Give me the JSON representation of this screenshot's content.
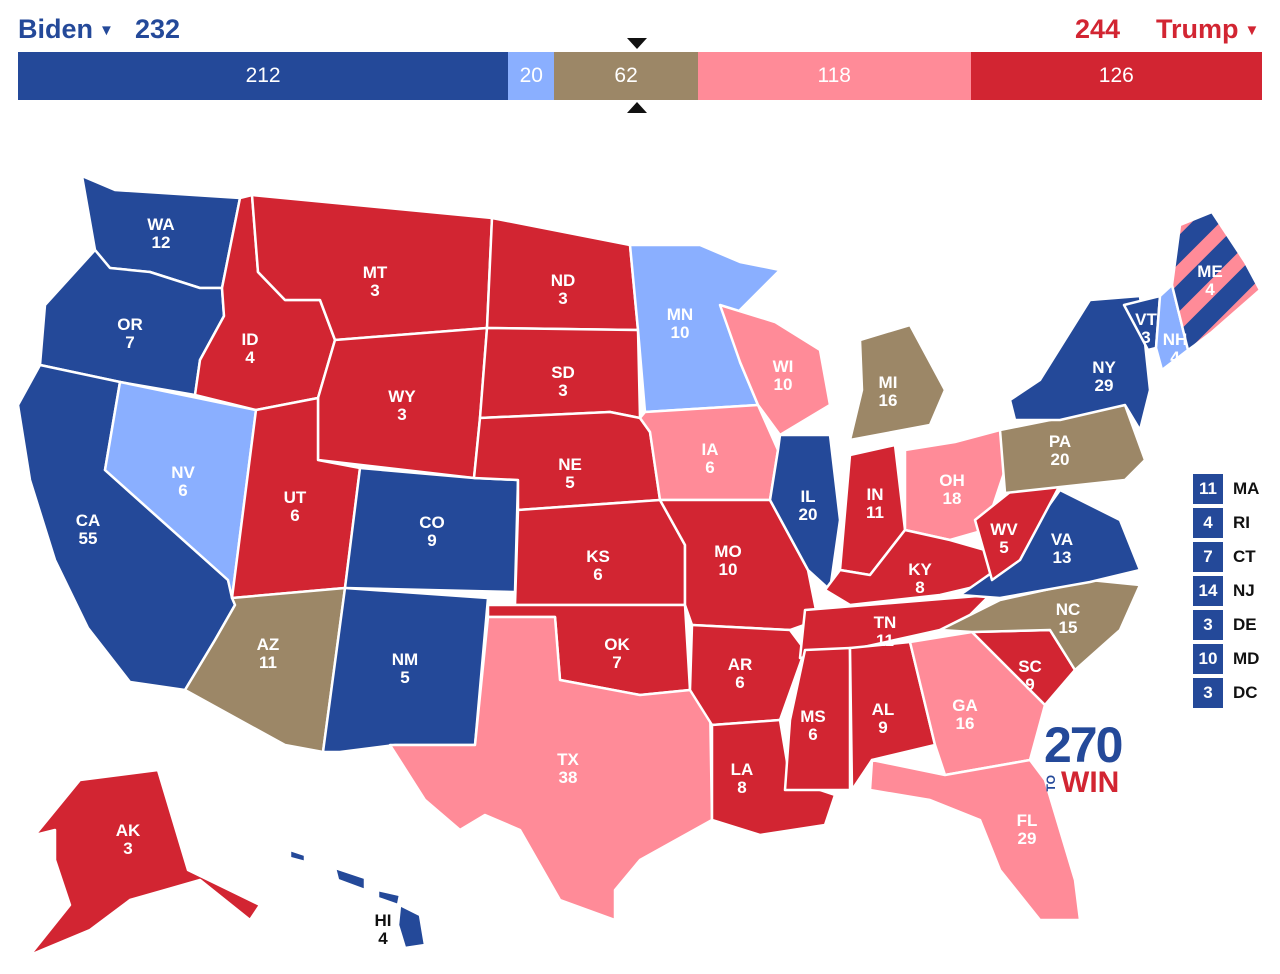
{
  "header": {
    "left_candidate": "Biden",
    "left_total": "232",
    "right_total": "244",
    "right_candidate": "Trump"
  },
  "colors": {
    "safe_dem": "#244999",
    "lean_dem": "#8aafff",
    "tossup": "#9c8767",
    "lean_rep": "#ff8b98",
    "safe_rep": "#d22532",
    "background": "#ffffff"
  },
  "bar": [
    {
      "value": "212",
      "category": "safe_dem",
      "color": "#244999"
    },
    {
      "value": "20",
      "category": "lean_dem",
      "color": "#8aafff"
    },
    {
      "value": "62",
      "category": "tossup",
      "color": "#9c8767"
    },
    {
      "value": "118",
      "category": "lean_rep",
      "color": "#ff8b98"
    },
    {
      "value": "126",
      "category": "safe_rep",
      "color": "#d22532"
    }
  ],
  "states": {
    "WA": {
      "abbr": "WA",
      "ev": "12",
      "cat": "safe_dem"
    },
    "OR": {
      "abbr": "OR",
      "ev": "7",
      "cat": "safe_dem"
    },
    "CA": {
      "abbr": "CA",
      "ev": "55",
      "cat": "safe_dem"
    },
    "NV": {
      "abbr": "NV",
      "ev": "6",
      "cat": "lean_dem"
    },
    "ID": {
      "abbr": "ID",
      "ev": "4",
      "cat": "safe_rep"
    },
    "MT": {
      "abbr": "MT",
      "ev": "3",
      "cat": "safe_rep"
    },
    "WY": {
      "abbr": "WY",
      "ev": "3",
      "cat": "safe_rep"
    },
    "UT": {
      "abbr": "UT",
      "ev": "6",
      "cat": "safe_rep"
    },
    "AZ": {
      "abbr": "AZ",
      "ev": "11",
      "cat": "tossup"
    },
    "CO": {
      "abbr": "CO",
      "ev": "9",
      "cat": "safe_dem"
    },
    "NM": {
      "abbr": "NM",
      "ev": "5",
      "cat": "safe_dem"
    },
    "ND": {
      "abbr": "ND",
      "ev": "3",
      "cat": "safe_rep"
    },
    "SD": {
      "abbr": "SD",
      "ev": "3",
      "cat": "safe_rep"
    },
    "NE": {
      "abbr": "NE",
      "ev": "5",
      "cat": "safe_rep"
    },
    "KS": {
      "abbr": "KS",
      "ev": "6",
      "cat": "safe_rep"
    },
    "OK": {
      "abbr": "OK",
      "ev": "7",
      "cat": "safe_rep"
    },
    "TX": {
      "abbr": "TX",
      "ev": "38",
      "cat": "lean_rep"
    },
    "MN": {
      "abbr": "MN",
      "ev": "10",
      "cat": "lean_dem"
    },
    "IA": {
      "abbr": "IA",
      "ev": "6",
      "cat": "lean_rep"
    },
    "MO": {
      "abbr": "MO",
      "ev": "10",
      "cat": "safe_rep"
    },
    "AR": {
      "abbr": "AR",
      "ev": "6",
      "cat": "safe_rep"
    },
    "LA": {
      "abbr": "LA",
      "ev": "8",
      "cat": "safe_rep"
    },
    "WI": {
      "abbr": "WI",
      "ev": "10",
      "cat": "lean_rep"
    },
    "IL": {
      "abbr": "IL",
      "ev": "20",
      "cat": "safe_dem"
    },
    "MI": {
      "abbr": "MI",
      "ev": "16",
      "cat": "tossup"
    },
    "IN": {
      "abbr": "IN",
      "ev": "11",
      "cat": "safe_rep"
    },
    "OH": {
      "abbr": "OH",
      "ev": "18",
      "cat": "lean_rep"
    },
    "KY": {
      "abbr": "KY",
      "ev": "8",
      "cat": "safe_rep"
    },
    "TN": {
      "abbr": "TN",
      "ev": "11",
      "cat": "safe_rep"
    },
    "MS": {
      "abbr": "MS",
      "ev": "6",
      "cat": "safe_rep"
    },
    "AL": {
      "abbr": "AL",
      "ev": "9",
      "cat": "safe_rep"
    },
    "GA": {
      "abbr": "GA",
      "ev": "16",
      "cat": "lean_rep"
    },
    "FL": {
      "abbr": "FL",
      "ev": "29",
      "cat": "lean_rep"
    },
    "SC": {
      "abbr": "SC",
      "ev": "9",
      "cat": "safe_rep"
    },
    "NC": {
      "abbr": "NC",
      "ev": "15",
      "cat": "tossup"
    },
    "VA": {
      "abbr": "VA",
      "ev": "13",
      "cat": "safe_dem"
    },
    "WV": {
      "abbr": "WV",
      "ev": "5",
      "cat": "safe_rep"
    },
    "PA": {
      "abbr": "PA",
      "ev": "20",
      "cat": "tossup"
    },
    "NY": {
      "abbr": "NY",
      "ev": "29",
      "cat": "safe_dem"
    },
    "VT": {
      "abbr": "VT",
      "ev": "3",
      "cat": "safe_dem"
    },
    "NH": {
      "abbr": "NH",
      "ev": "4",
      "cat": "lean_dem"
    },
    "ME": {
      "abbr": "ME",
      "ev": "4",
      "cat": "split_safe_dem_lean_rep"
    },
    "AK": {
      "abbr": "AK",
      "ev": "3",
      "cat": "safe_rep"
    },
    "HI": {
      "abbr": "HI",
      "ev": "4",
      "cat": "safe_dem"
    }
  },
  "legend": [
    {
      "ev": "11",
      "abbr": "MA"
    },
    {
      "ev": "4",
      "abbr": "RI"
    },
    {
      "ev": "7",
      "abbr": "CT"
    },
    {
      "ev": "14",
      "abbr": "NJ"
    },
    {
      "ev": "3",
      "abbr": "DE"
    },
    {
      "ev": "10",
      "abbr": "MD"
    },
    {
      "ev": "3",
      "abbr": "DC"
    }
  ],
  "logo": {
    "number": "270",
    "to": "TO",
    "win": "WIN"
  }
}
